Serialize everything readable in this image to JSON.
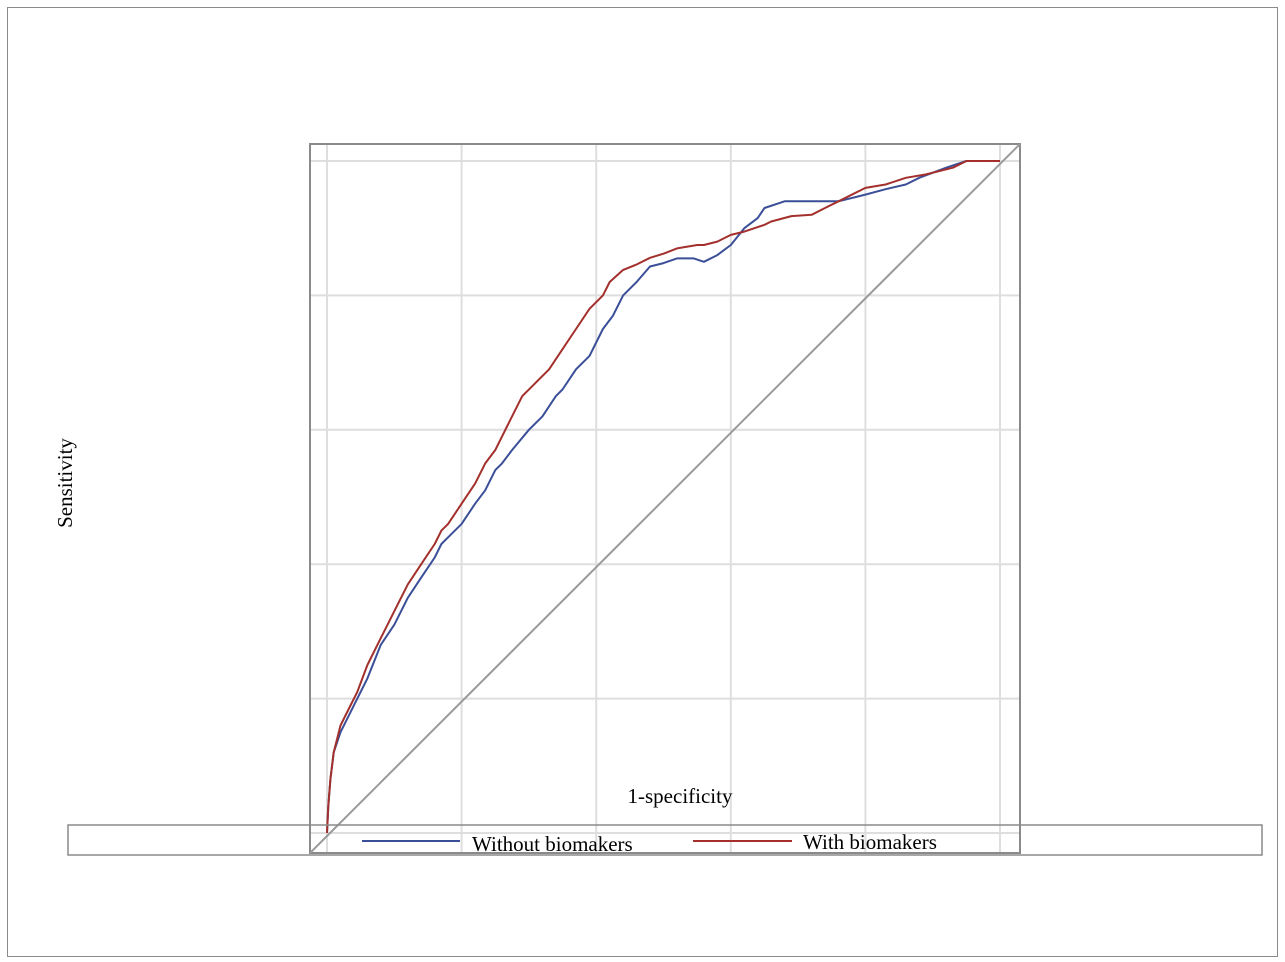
{
  "chart_data": {
    "type": "line",
    "xlabel": "1-specificity",
    "ylabel": "Sensitivity",
    "xlim": [
      0,
      1
    ],
    "ylim": [
      0,
      1
    ],
    "grid": true,
    "legend_position": "bottom",
    "series": [
      {
        "name": "Without biomakers",
        "color": "#3b4f98",
        "x": [
          0,
          0.002,
          0.005,
          0.01,
          0.02,
          0.03,
          0.045,
          0.06,
          0.08,
          0.1,
          0.12,
          0.14,
          0.16,
          0.17,
          0.18,
          0.2,
          0.22,
          0.235,
          0.25,
          0.26,
          0.275,
          0.3,
          0.32,
          0.34,
          0.35,
          0.37,
          0.39,
          0.41,
          0.425,
          0.44,
          0.46,
          0.48,
          0.5,
          0.52,
          0.545,
          0.56,
          0.58,
          0.6,
          0.62,
          0.64,
          0.65,
          0.68,
          0.72,
          0.76,
          0.8,
          0.83,
          0.86,
          0.88,
          0.92,
          0.95,
          0.97,
          1
        ],
        "y": [
          0,
          0.04,
          0.08,
          0.12,
          0.15,
          0.17,
          0.2,
          0.23,
          0.28,
          0.31,
          0.35,
          0.38,
          0.41,
          0.43,
          0.44,
          0.46,
          0.49,
          0.51,
          0.54,
          0.55,
          0.57,
          0.6,
          0.62,
          0.65,
          0.66,
          0.69,
          0.71,
          0.75,
          0.77,
          0.8,
          0.82,
          0.843,
          0.848,
          0.855,
          0.855,
          0.85,
          0.86,
          0.875,
          0.9,
          0.915,
          0.93,
          0.94,
          0.94,
          0.94,
          0.95,
          0.958,
          0.965,
          0.975,
          0.99,
          1,
          1,
          1
        ]
      },
      {
        "name": "With biomakers",
        "color": "#a3302c",
        "x": [
          0,
          0.002,
          0.005,
          0.01,
          0.02,
          0.03,
          0.045,
          0.06,
          0.08,
          0.1,
          0.12,
          0.14,
          0.16,
          0.17,
          0.18,
          0.2,
          0.22,
          0.235,
          0.25,
          0.27,
          0.29,
          0.31,
          0.33,
          0.35,
          0.37,
          0.39,
          0.41,
          0.42,
          0.44,
          0.46,
          0.48,
          0.5,
          0.52,
          0.55,
          0.56,
          0.58,
          0.6,
          0.62,
          0.65,
          0.66,
          0.69,
          0.72,
          0.74,
          0.76,
          0.8,
          0.83,
          0.86,
          0.89,
          0.93,
          0.95,
          0.97,
          1
        ],
        "y": [
          0,
          0.04,
          0.08,
          0.12,
          0.16,
          0.18,
          0.21,
          0.25,
          0.29,
          0.33,
          0.37,
          0.4,
          0.43,
          0.45,
          0.46,
          0.49,
          0.52,
          0.55,
          0.57,
          0.61,
          0.65,
          0.67,
          0.69,
          0.72,
          0.75,
          0.78,
          0.8,
          0.82,
          0.838,
          0.846,
          0.856,
          0.862,
          0.87,
          0.875,
          0.875,
          0.88,
          0.89,
          0.895,
          0.905,
          0.91,
          0.918,
          0.92,
          0.93,
          0.94,
          0.96,
          0.965,
          0.975,
          0.98,
          0.99,
          1,
          1,
          1
        ]
      },
      {
        "name": "",
        "color": "#9a9a9a",
        "x": [
          0,
          1
        ],
        "y": [
          0,
          1
        ]
      }
    ]
  }
}
